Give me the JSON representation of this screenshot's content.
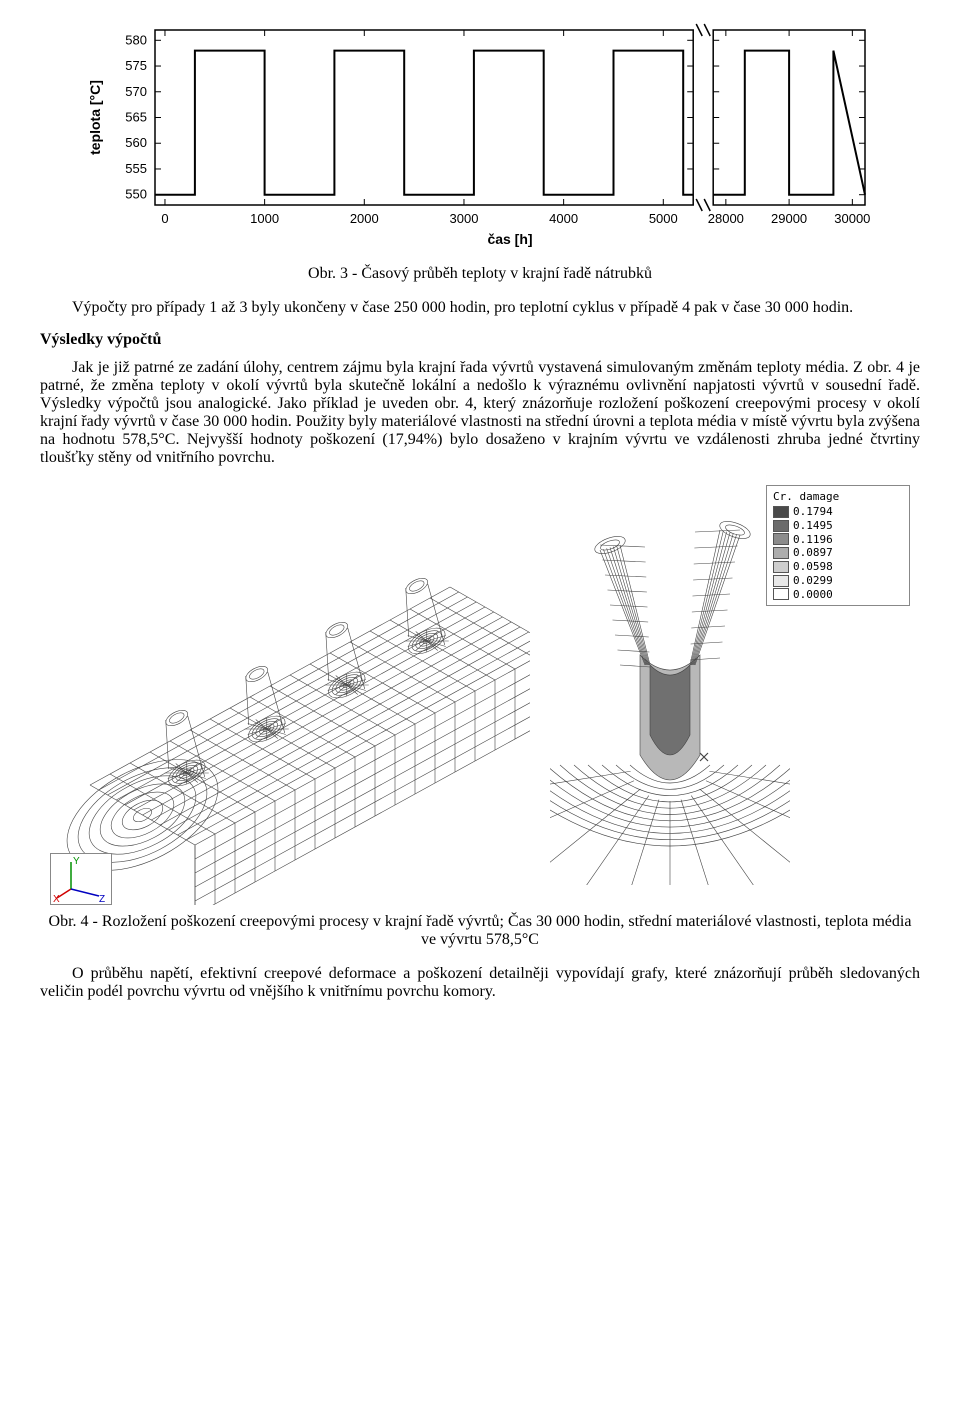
{
  "chart": {
    "type": "step-line",
    "ylabel": "teplota [°C]",
    "xlabel": "čas [h]",
    "label_fontsize": 14,
    "font_weight": "bold",
    "xlim_left": [
      -100,
      5300
    ],
    "xlim_right": [
      27800,
      30200
    ],
    "ylim": [
      548,
      582
    ],
    "yticks": [
      550,
      555,
      560,
      565,
      570,
      575,
      580
    ],
    "xticks_left": [
      0,
      1000,
      2000,
      3000,
      4000,
      5000
    ],
    "xticks_right": [
      28000,
      29000,
      30000
    ],
    "line_color": "#000000",
    "line_width": 2,
    "background_color": "#ffffff",
    "border_color": "#000000",
    "tick_fontsize": 13,
    "square_wave": {
      "low": 550,
      "high": 578,
      "period": 1400,
      "duty": 0.5,
      "start": 300
    }
  },
  "captions": {
    "fig3": "Obr. 3 - Časový průběh teploty v krajní řadě nátrubků",
    "fig4": "Obr. 4 - Rozložení poškození creepovými procesy v krajní řadě vývrtů; Čas 30 000 hodin, střední materiálové vlastnosti, teplota média ve vývrtu 578,5°C"
  },
  "paragraphs": {
    "p1": "Výpočty pro případy 1 až 3 byly ukončeny v čase 250 000 hodin, pro teplotní cyklus v případě 4 pak v čase 30 000 hodin.",
    "heading": "Výsledky výpočtů",
    "p2": "Jak je již patrné ze zadání úlohy, centrem zájmu byla krajní řada vývrtů vystavená simulovaným změnám teploty média. Z obr. 4 je patrné, že změna teploty v okolí vývrtů byla skutečně lokální a nedošlo k výraznému ovlivnění napjatosti vývrtů v sousední řadě. Výsledky výpočtů jsou analogické. Jako příklad je uveden obr. 4, který znázorňuje rozložení poškození creepovými procesy v okolí krajní řady vývrtů v čase 30 000 hodin. Použity byly materiálové vlastnosti na střední úrovni a teplota média v místě vývrtu byla zvýšena na hodnotu 578,5°C. Nejvyšší hodnoty poškození (17,94%) bylo dosaženo v krajním vývrtu ve vzdálenosti zhruba jedné čtvrtiny tloušťky stěny od vnitřního povrchu.",
    "p3": "O průběhu napětí, efektivní creepové deformace a poškození detailněji vypovídají grafy, které znázorňují průběh sledovaných veličin podél povrchu vývrtu od vnějšího k vnitřnímu povrchu komory."
  },
  "legend": {
    "title": "Cr. damage",
    "items": [
      {
        "value": "0.1794",
        "color": "#4a4a4a"
      },
      {
        "value": "0.1495",
        "color": "#6b6b6b"
      },
      {
        "value": "0.1196",
        "color": "#8c8c8c"
      },
      {
        "value": "0.0897",
        "color": "#adadad"
      },
      {
        "value": "0.0598",
        "color": "#cecece"
      },
      {
        "value": "0.0299",
        "color": "#e8e8e8"
      },
      {
        "value": "0.0000",
        "color": "#ffffff"
      }
    ]
  },
  "axis_triad": {
    "labels": [
      "X",
      "Y",
      "Z"
    ],
    "colors": {
      "X": "#d00000",
      "Y": "#009000",
      "Z": "#0000c0"
    }
  },
  "mesh_style": {
    "stroke": "#444444",
    "stroke_width": 0.6,
    "fill": "#ffffff",
    "shading_dark": "#707070",
    "shading_mid": "#b8b8b8"
  }
}
